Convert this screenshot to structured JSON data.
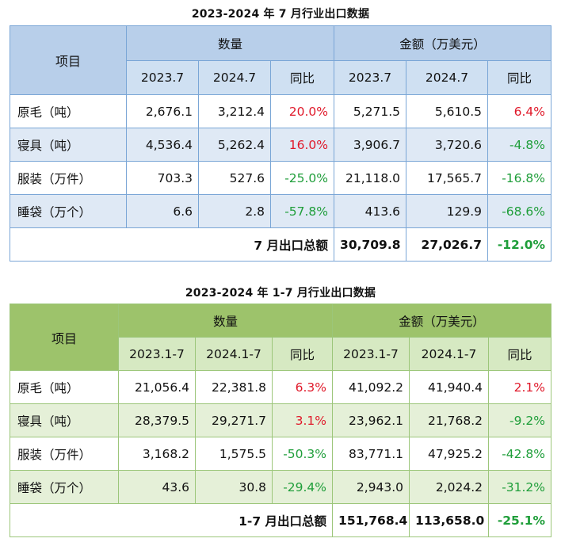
{
  "table1": {
    "title": "2023-2024 年 7 月行业出口数据",
    "item_header": "项目",
    "quantity_header": "数量",
    "amount_header": "金额（万美元）",
    "sub_headers": [
      "2023.7",
      "2024.7",
      "同比",
      "2023.7",
      "2024.7",
      "同比"
    ],
    "rows": [
      {
        "name": "原毛（吨）",
        "q2023": "2,676.1",
        "q2024": "3,212.4",
        "qyoy": "20.0%",
        "a2023": "5,271.5",
        "a2024": "5,610.5",
        "ayoy": "6.4%"
      },
      {
        "name": "寝具（吨）",
        "q2023": "4,536.4",
        "q2024": "5,262.4",
        "qyoy": "16.0%",
        "a2023": "3,906.7",
        "a2024": "3,720.6",
        "ayoy": "-4.8%"
      },
      {
        "name": "服装（万件）",
        "q2023": "703.3",
        "q2024": "527.6",
        "qyoy": "-25.0%",
        "a2023": "21,118.0",
        "a2024": "17,565.7",
        "ayoy": "-16.8%"
      },
      {
        "name": "睡袋（万个）",
        "q2023": "6.6",
        "q2024": "2.8",
        "qyoy": "-57.8%",
        "a2023": "413.6",
        "a2024": "129.9",
        "ayoy": "-68.6%"
      }
    ],
    "total": {
      "label": "7 月出口总额",
      "a2023": "30,709.8",
      "a2024": "27,026.7",
      "ayoy": "-12.0%"
    }
  },
  "table2": {
    "title": "2023-2024 年 1-7 月行业出口数据",
    "item_header": "项目",
    "quantity_header": "数量",
    "amount_header": "金额（万美元）",
    "sub_headers": [
      "2023.1-7",
      "2024.1-7",
      "同比",
      "2023.1-7",
      "2024.1-7",
      "同比"
    ],
    "rows": [
      {
        "name": "原毛（吨）",
        "q2023": "21,056.4",
        "q2024": "22,381.8",
        "qyoy": "6.3%",
        "a2023": "41,092.2",
        "a2024": "41,940.4",
        "ayoy": "2.1%"
      },
      {
        "name": "寝具（吨）",
        "q2023": "28,379.5",
        "q2024": "29,271.7",
        "qyoy": "3.1%",
        "a2023": "23,962.1",
        "a2024": "21,768.2",
        "ayoy": "-9.2%"
      },
      {
        "name": "服装（万件）",
        "q2023": "3,168.2",
        "q2024": "1,575.5",
        "qyoy": "-50.3%",
        "a2023": "83,771.1",
        "a2024": "47,925.2",
        "ayoy": "-42.8%"
      },
      {
        "name": "睡袋（万个）",
        "q2023": "43.6",
        "q2024": "30.8",
        "qyoy": "-29.4%",
        "a2023": "2,943.0",
        "a2024": "2,024.2",
        "ayoy": "-31.2%"
      }
    ],
    "total": {
      "label": "1-7 月出口总额",
      "a2023": "151,768.4",
      "a2024": "113,658.0",
      "ayoy": "-25.1%"
    }
  },
  "colors": {
    "positive": "#e0192a",
    "negative": "#1f9e3a",
    "table1_header": "#b8cfea",
    "table2_header": "#9dc36b"
  }
}
